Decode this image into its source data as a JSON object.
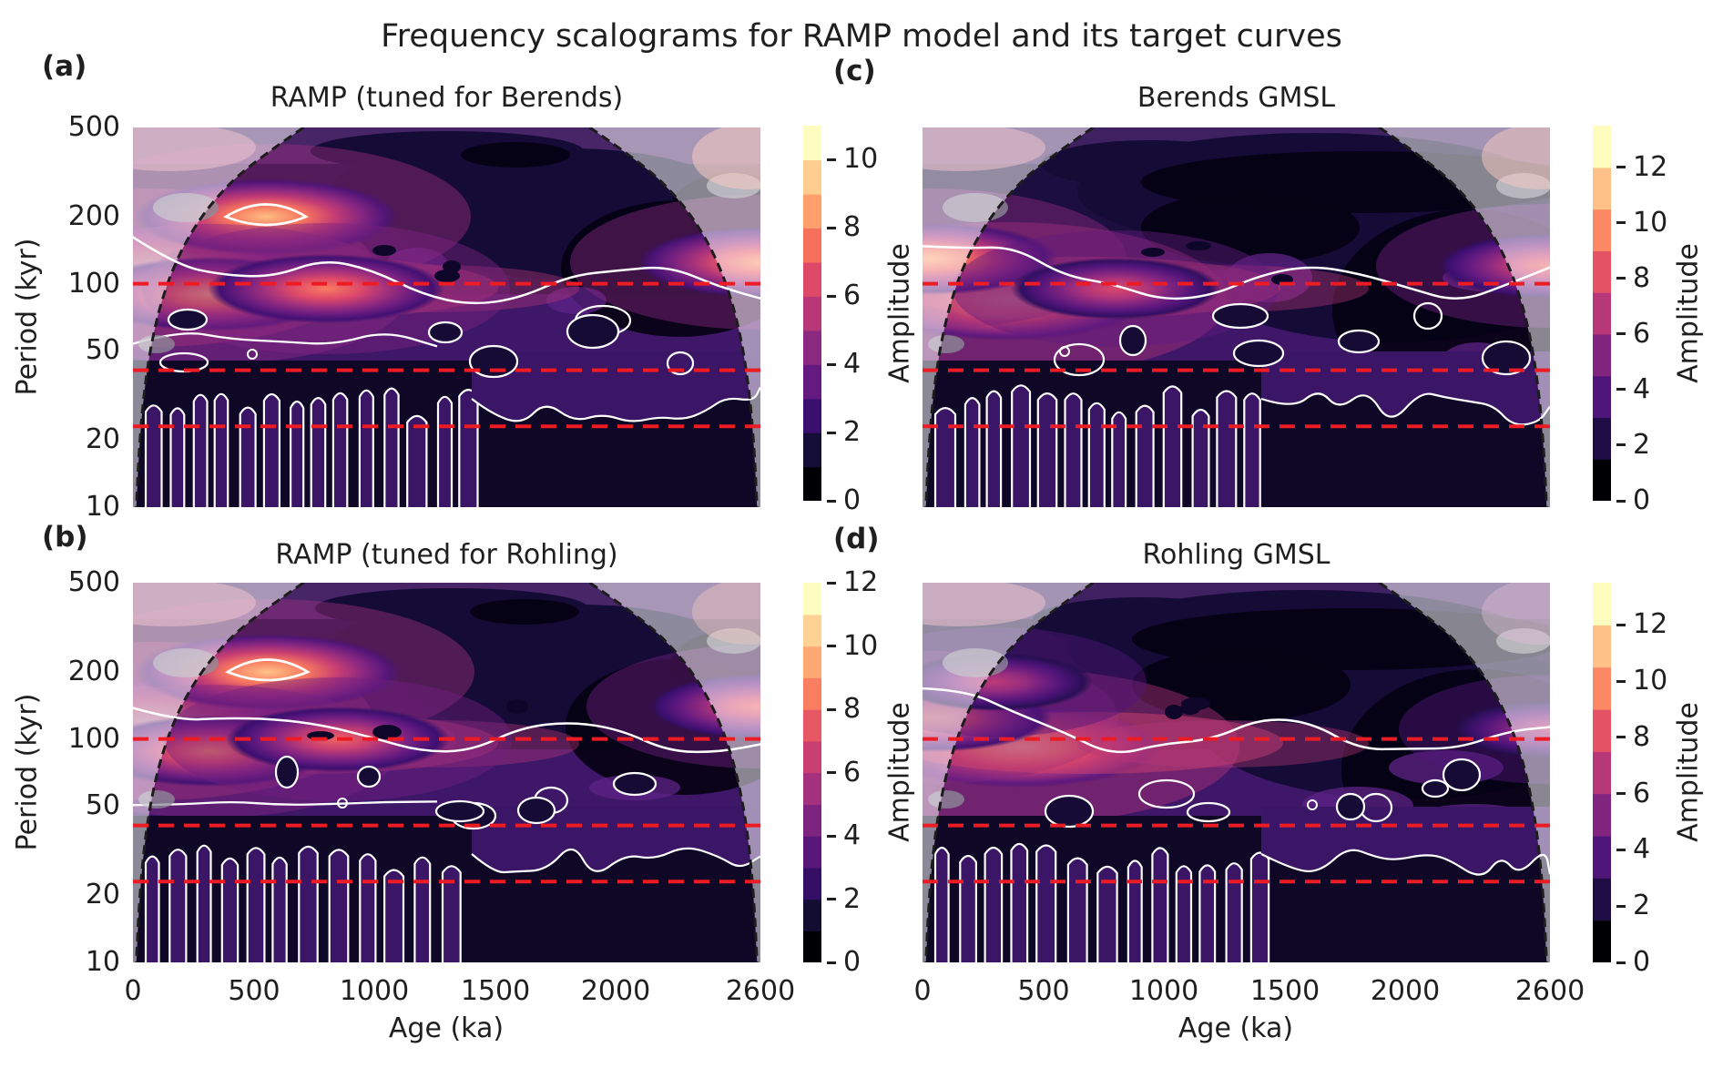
{
  "figure": {
    "suptitle": "Frequency scalograms for RAMP model and its target curves"
  },
  "chart_data": {
    "type": "heatmap",
    "subtype": "wavelet frequency scalogram (filled contours, magma colormap)",
    "colormap": "magma",
    "x": {
      "label": "Age (ka)",
      "range_ka": [
        0,
        2600
      ],
      "ticks": [
        0,
        500,
        1000,
        1500,
        2000,
        2600
      ]
    },
    "y": {
      "label": "Period (kyr)",
      "scale": "log",
      "range_kyr": [
        10,
        500
      ],
      "ticks": [
        500,
        200,
        100,
        50,
        20,
        10
      ]
    },
    "reference_lines": {
      "periods_kyr": [
        100,
        41,
        23
      ],
      "style": "horizontal dashed",
      "color": "#ed1c24",
      "meaning": "Milankovitch eccentricity / obliquity / precession periods"
    },
    "cone_of_influence": {
      "style": "black dashed curve, region outside shown faded",
      "edge_age_ka": "approx. sqrt(2) x period from each record end"
    },
    "significance_contours": "white solid contour lines",
    "panels": [
      {
        "label": "(a)",
        "title": "RAMP (tuned for Berends)",
        "colorbar": {
          "label": "Amplitude",
          "min": 0,
          "max": 11,
          "band_width": 1,
          "ticks": [
            0,
            2,
            4,
            6,
            8,
            10
          ]
        },
        "amplitude_peaks": [
          {
            "age_ka": 60,
            "period_kyr": 118,
            "amplitude": 11
          },
          {
            "age_ka": 550,
            "period_kyr": 200,
            "amplitude": 9.5,
            "ringed": true
          },
          {
            "age_ka": 320,
            "period_kyr": 90,
            "amplitude": 9
          },
          {
            "age_ka": 800,
            "period_kyr": 95,
            "amplitude": 8
          },
          {
            "age_ka": 2600,
            "period_kyr": 125,
            "amplitude": 8.5
          }
        ]
      },
      {
        "label": "(b)",
        "title": "RAMP (tuned for Rohling)",
        "colorbar": {
          "label": "Amplitude",
          "min": 0,
          "max": 12,
          "band_width": 1,
          "ticks": [
            0,
            2,
            4,
            6,
            8,
            10,
            12
          ]
        },
        "amplitude_peaks": [
          {
            "age_ka": 60,
            "period_kyr": 120,
            "amplitude": 12
          },
          {
            "age_ka": 560,
            "period_kyr": 200,
            "amplitude": 10.5,
            "ringed": true
          },
          {
            "age_ka": 320,
            "period_kyr": 88,
            "amplitude": 9
          },
          {
            "age_ka": 850,
            "period_kyr": 100,
            "amplitude": 8
          },
          {
            "age_ka": 2600,
            "period_kyr": 140,
            "amplitude": 8
          }
        ]
      },
      {
        "label": "(c)",
        "title": "Berends GMSL",
        "colorbar": {
          "label": "Amplitude",
          "min": 0,
          "max": 13.5,
          "band_width": 1.5,
          "ticks": [
            0,
            2,
            4,
            6,
            8,
            10,
            12
          ]
        },
        "amplitude_peaks": [
          {
            "age_ka": 350,
            "period_kyr": 85,
            "amplitude": 13
          },
          {
            "age_ka": 30,
            "period_kyr": 130,
            "amplitude": 11
          },
          {
            "age_ka": 800,
            "period_kyr": 95,
            "amplitude": 8
          },
          {
            "age_ka": 2600,
            "period_kyr": 120,
            "amplitude": 9
          }
        ]
      },
      {
        "label": "(d)",
        "title": "Rohling GMSL",
        "colorbar": {
          "label": "Amplitude",
          "min": 0,
          "max": 13.5,
          "band_width": 1.5,
          "ticks": [
            0,
            2,
            4,
            6,
            8,
            10,
            12
          ]
        },
        "amplitude_peaks": [
          {
            "age_ka": 400,
            "period_kyr": 92,
            "amplitude": 13
          },
          {
            "age_ka": 40,
            "period_kyr": 125,
            "amplitude": 10
          },
          {
            "age_ka": 300,
            "period_kyr": 180,
            "amplitude": 7
          },
          {
            "age_ka": 2600,
            "period_kyr": 110,
            "amplitude": 7
          }
        ]
      }
    ]
  }
}
